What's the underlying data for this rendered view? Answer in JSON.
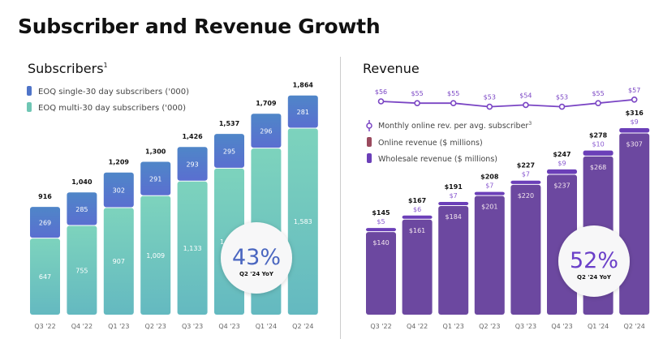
{
  "title": "Subscriber and Revenue Growth",
  "chart_data": [
    {
      "type": "bar",
      "stacked": true,
      "title": "Subscribers",
      "title_superscript": "1",
      "categories": [
        "Q3 '22",
        "Q4 '22",
        "Q1 '23",
        "Q2 '23",
        "Q3 '23",
        "Q4 '23",
        "Q1 '24",
        "Q2 '24"
      ],
      "series": [
        {
          "name": "EOQ multi-30 day subscribers  ('000)",
          "values": [
            647,
            755,
            907,
            1009,
            1133,
            1242,
            1413,
            1583
          ],
          "labels": [
            "647",
            "755",
            "907",
            "1,009",
            "1,133",
            "1,242",
            "1,413",
            "1,583"
          ],
          "color": "#6fc6b4"
        },
        {
          "name": "EOQ single-30 day subscribers ('000)",
          "values": [
            269,
            285,
            302,
            291,
            293,
            295,
            296,
            281
          ],
          "labels": [
            "269",
            "285",
            "302",
            "291",
            "293",
            "295",
            "296",
            "281"
          ],
          "color": "#4f74c8"
        }
      ],
      "totals": [
        "916",
        "1,040",
        "1,209",
        "1,300",
        "1,426",
        "1,537",
        "1,709",
        "1,864"
      ],
      "callout": {
        "value": "43%",
        "label": "Q2 '24 YoY",
        "color": "#4a66c0"
      },
      "legend": "top-left",
      "grid": false
    },
    {
      "type": "bar",
      "stacked": true,
      "title": "Revenue",
      "categories": [
        "Q3 '22",
        "Q4 '22",
        "Q1 '23",
        "Q2 '23",
        "Q3 '23",
        "Q4 '23",
        "Q1 '24",
        "Q2 '24"
      ],
      "series": [
        {
          "name": "Online revenue ($ millions)",
          "values": [
            140,
            161,
            184,
            201,
            220,
            237,
            268,
            307
          ],
          "labels": [
            "$140",
            "$161",
            "$184",
            "$201",
            "$220",
            "$237",
            "$268",
            "$307"
          ],
          "color": "#9a4a5e"
        },
        {
          "name": "Wholesale revenue ($ millions)",
          "values": [
            5,
            6,
            7,
            7,
            7,
            9,
            10,
            9
          ],
          "labels": [
            "$5",
            "$6",
            "$7",
            "$7",
            "$7",
            "$9",
            "$10",
            "$9"
          ],
          "color": "#6b3fb8"
        }
      ],
      "totals": [
        "$145",
        "$167",
        "$191",
        "$208",
        "$227",
        "$247",
        "$278",
        "$316"
      ],
      "line_series": {
        "name": "Monthly online rev. per avg. subscriber",
        "name_superscript": "3",
        "values": [
          56,
          55,
          55,
          53,
          54,
          53,
          55,
          57
        ],
        "labels": [
          "$56",
          "$55",
          "$55",
          "$53",
          "$54",
          "$53",
          "$55",
          "$57"
        ],
        "color": "#7a45c4"
      },
      "callout": {
        "value": "52%",
        "label": "Q2 '24 YoY",
        "color": "#6a3fc8"
      },
      "legend": "left",
      "grid": false
    }
  ]
}
